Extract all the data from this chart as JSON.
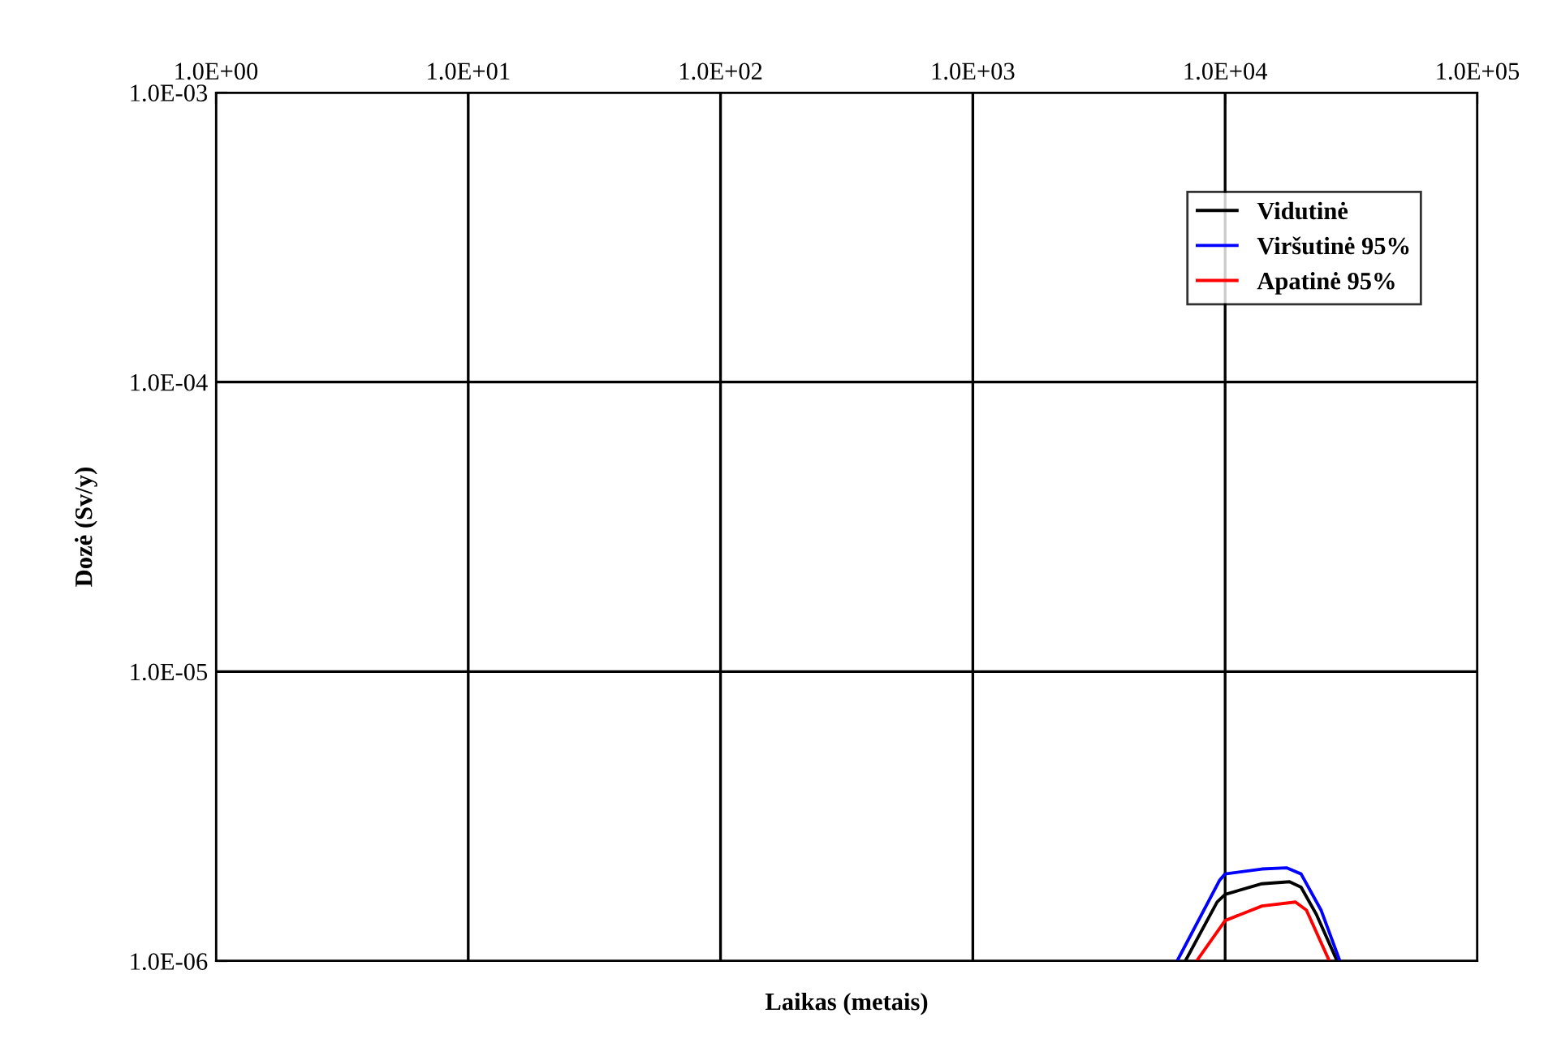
{
  "chart_data": {
    "type": "line",
    "xlabel": "Laikas (metais)",
    "ylabel": "Dozė (Sv/y)",
    "log": "xy",
    "grid": true,
    "legend": "top right",
    "marker": "none",
    "line_style": "solid",
    "xlim": [
      1,
      100000
    ],
    "xticks": [
      {
        "value": 1,
        "label": "1.0E+00"
      },
      {
        "value": 10,
        "label": "1.0E+01"
      },
      {
        "value": 100,
        "label": "1.0E+02"
      },
      {
        "value": 1000,
        "label": "1.0E+03"
      },
      {
        "value": 10000,
        "label": "1.0E+04"
      },
      {
        "value": 100000,
        "label": "1.0E+05"
      }
    ],
    "ylim": [
      1e-06,
      0.001
    ],
    "yticks": [
      {
        "value": 1e-06,
        "label": "1.0E-06"
      },
      {
        "value": 1e-05,
        "label": "1.0E-05"
      },
      {
        "value": 0.0001,
        "label": "1.0E-04"
      },
      {
        "value": 0.001,
        "label": "1.0E-03"
      }
    ],
    "series": [
      {
        "name": "Vidutinė",
        "color": "#000000",
        "x": [
          6950,
          9300,
          10000,
          14000,
          18000,
          20000,
          23000,
          27800
        ],
        "values": [
          1e-06,
          1.6e-06,
          1.7e-06,
          1.85e-06,
          1.88e-06,
          1.8e-06,
          1.45e-06,
          1e-06
        ]
      },
      {
        "name": "Viršutinė 95%",
        "color": "#0000ff",
        "x": [
          6450,
          9500,
          10000,
          14000,
          17500,
          20000,
          24000,
          28500
        ],
        "values": [
          1e-06,
          1.9e-06,
          2e-06,
          2.08e-06,
          2.1e-06,
          2e-06,
          1.5e-06,
          1e-06
        ]
      },
      {
        "name": "Apatinė 95%",
        "color": "#ff0000",
        "x": [
          7700,
          10000,
          14000,
          19000,
          21000,
          25900
        ],
        "values": [
          1e-06,
          1.38e-06,
          1.55e-06,
          1.6e-06,
          1.5e-06,
          1e-06
        ]
      }
    ]
  }
}
